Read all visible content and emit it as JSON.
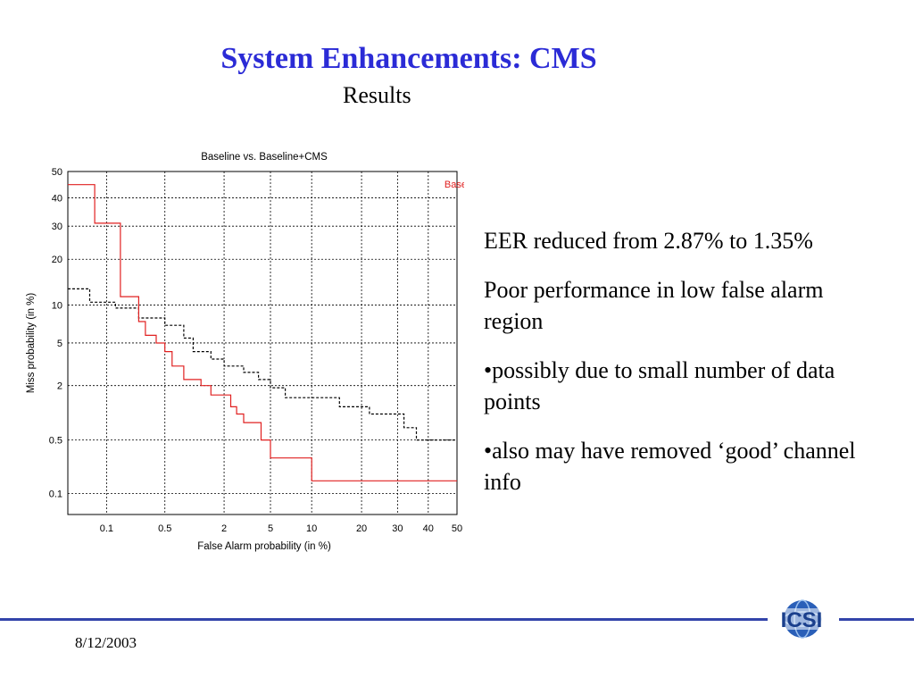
{
  "slide": {
    "title": "System Enhancements: CMS",
    "subtitle": "Results",
    "bullets": [
      "EER reduced from 2.87% to 1.35%",
      "Poor performance in low false alarm region",
      "•possibly due to small number of data points",
      "•also may have removed ‘good’ channel info"
    ],
    "date": "8/12/2003",
    "logo_text": "ICSI",
    "colors": {
      "title": "#2b2bd6",
      "footer_line": "#3344aa"
    }
  },
  "chart_data": {
    "type": "line",
    "title": "Baseline vs. Baseline+CMS",
    "xlabel": "False Alarm probability (in %)",
    "ylabel": "Miss probability (in %)",
    "x_ticks": [
      "0.1",
      "0.5",
      "2",
      "5",
      "10",
      "20",
      "30",
      "40",
      "50"
    ],
    "y_ticks": [
      "0.1",
      "0.5",
      "2",
      "5",
      "10",
      "20",
      "30",
      "40",
      "50"
    ],
    "x_scale": "normal-deviate",
    "y_scale": "normal-deviate",
    "xlim": [
      0.03,
      50
    ],
    "ylim": [
      0.05,
      50
    ],
    "grid": true,
    "legend_position": "top-right",
    "series": [
      {
        "name": "Baseline",
        "color": "#000000",
        "style": "dashed",
        "points": [
          [
            0.03,
            13
          ],
          [
            0.06,
            13
          ],
          [
            0.06,
            10.5
          ],
          [
            0.13,
            10.5
          ],
          [
            0.13,
            9.5
          ],
          [
            0.25,
            9.5
          ],
          [
            0.25,
            8
          ],
          [
            0.5,
            8
          ],
          [
            0.5,
            7
          ],
          [
            0.8,
            7
          ],
          [
            0.8,
            5.5
          ],
          [
            1.0,
            5.5
          ],
          [
            1.0,
            4.2
          ],
          [
            1.5,
            4.2
          ],
          [
            1.5,
            3.6
          ],
          [
            2.0,
            3.6
          ],
          [
            2.0,
            3.1
          ],
          [
            3.0,
            3.1
          ],
          [
            3.0,
            2.7
          ],
          [
            4.0,
            2.7
          ],
          [
            4.0,
            2.3
          ],
          [
            5.0,
            2.3
          ],
          [
            5.0,
            1.9
          ],
          [
            6.5,
            1.9
          ],
          [
            6.5,
            1.5
          ],
          [
            15,
            1.5
          ],
          [
            15,
            1.2
          ],
          [
            22,
            1.2
          ],
          [
            22,
            1.0
          ],
          [
            32,
            1.0
          ],
          [
            32,
            0.7
          ],
          [
            36,
            0.7
          ],
          [
            36,
            0.5
          ],
          [
            50,
            0.5
          ]
        ]
      },
      {
        "name": "Baseline+CMS",
        "color": "#e02020",
        "style": "solid",
        "points": [
          [
            0.03,
            45
          ],
          [
            0.07,
            45
          ],
          [
            0.07,
            31
          ],
          [
            0.15,
            31
          ],
          [
            0.15,
            11.5
          ],
          [
            0.25,
            11.5
          ],
          [
            0.25,
            7.5
          ],
          [
            0.3,
            7.5
          ],
          [
            0.3,
            5.8
          ],
          [
            0.4,
            5.8
          ],
          [
            0.4,
            5
          ],
          [
            0.5,
            5
          ],
          [
            0.5,
            4.2
          ],
          [
            0.6,
            4.2
          ],
          [
            0.6,
            3.1
          ],
          [
            0.8,
            3.1
          ],
          [
            0.8,
            2.3
          ],
          [
            1.2,
            2.3
          ],
          [
            1.2,
            2.0
          ],
          [
            1.5,
            2.0
          ],
          [
            1.5,
            1.6
          ],
          [
            2.3,
            1.6
          ],
          [
            2.3,
            1.2
          ],
          [
            2.6,
            1.2
          ],
          [
            2.6,
            1.0
          ],
          [
            3.0,
            1.0
          ],
          [
            3.0,
            0.8
          ],
          [
            4.2,
            0.8
          ],
          [
            4.2,
            0.5
          ],
          [
            5.0,
            0.5
          ],
          [
            5.0,
            0.3
          ],
          [
            10,
            0.3
          ],
          [
            10,
            0.15
          ],
          [
            50,
            0.15
          ]
        ]
      }
    ]
  }
}
